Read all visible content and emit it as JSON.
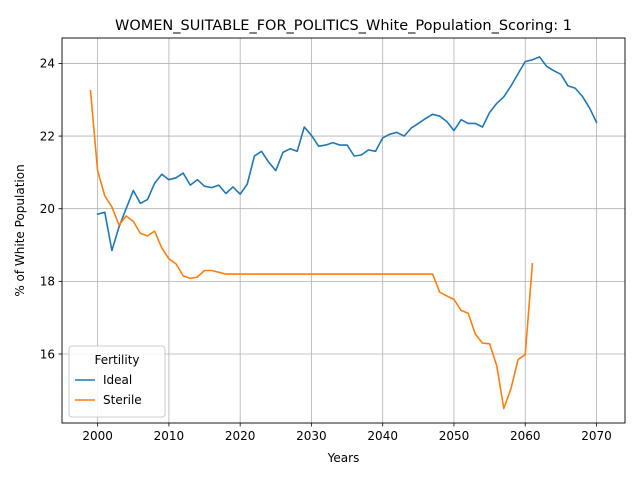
{
  "chart_data": {
    "type": "line",
    "title": "WOMEN_SUITABLE_FOR_POLITICS_White_Population_Scoring: 1",
    "xlabel": "Years",
    "ylabel": "% of White Population",
    "xlim": [
      1995,
      2074
    ],
    "ylim": [
      14.1,
      24.7
    ],
    "xticks": [
      2000,
      2010,
      2020,
      2030,
      2040,
      2050,
      2060,
      2070
    ],
    "yticks": [
      16,
      18,
      20,
      22,
      24
    ],
    "grid": true,
    "legend": {
      "title": "Fertility",
      "placement": "lower-left"
    },
    "series": [
      {
        "name": "Ideal",
        "color": "#1f77b4",
        "x": [
          2000,
          2001,
          2002,
          2003,
          2004,
          2005,
          2006,
          2007,
          2008,
          2009,
          2010,
          2011,
          2012,
          2013,
          2014,
          2015,
          2016,
          2017,
          2018,
          2019,
          2020,
          2021,
          2022,
          2023,
          2024,
          2025,
          2026,
          2027,
          2028,
          2029,
          2030,
          2031,
          2032,
          2033,
          2034,
          2035,
          2036,
          2037,
          2038,
          2039,
          2040,
          2041,
          2042,
          2043,
          2044,
          2045,
          2046,
          2047,
          2048,
          2049,
          2050,
          2051,
          2052,
          2053,
          2054,
          2055,
          2056,
          2057,
          2058,
          2059,
          2060,
          2061,
          2062,
          2063,
          2064,
          2065,
          2066,
          2067,
          2068,
          2069,
          2070
        ],
        "y": [
          19.85,
          19.9,
          18.85,
          19.5,
          20.0,
          20.5,
          20.15,
          20.25,
          20.7,
          20.95,
          20.8,
          20.85,
          20.98,
          20.65,
          20.8,
          20.62,
          20.58,
          20.65,
          20.42,
          20.6,
          20.4,
          20.68,
          21.45,
          21.58,
          21.28,
          21.05,
          21.55,
          21.65,
          21.58,
          22.25,
          22.02,
          21.72,
          21.75,
          21.82,
          21.75,
          21.75,
          21.45,
          21.48,
          21.62,
          21.58,
          21.95,
          22.05,
          22.1,
          22.0,
          22.22,
          22.35,
          22.48,
          22.6,
          22.55,
          22.4,
          22.15,
          22.45,
          22.35,
          22.35,
          22.25,
          22.65,
          22.9,
          23.08,
          23.38,
          23.72,
          24.05,
          24.1,
          24.18,
          23.92,
          23.8,
          23.7,
          23.38,
          23.32,
          23.1,
          22.78,
          22.38
        ]
      },
      {
        "name": "Sterile",
        "color": "#ff7f0e",
        "x": [
          1999,
          2000,
          2001,
          2002,
          2003,
          2004,
          2005,
          2006,
          2007,
          2008,
          2009,
          2010,
          2011,
          2012,
          2013,
          2014,
          2015,
          2016,
          2017,
          2018,
          2019,
          2020,
          2021,
          2022,
          2023,
          2024,
          2025,
          2026,
          2027,
          2028,
          2029,
          2030,
          2031,
          2032,
          2033,
          2034,
          2035,
          2036,
          2037,
          2038,
          2039,
          2040,
          2041,
          2042,
          2043,
          2044,
          2045,
          2046,
          2047,
          2048,
          2049,
          2050,
          2051,
          2052,
          2053,
          2054,
          2055,
          2056,
          2057,
          2058,
          2059,
          2060,
          2061
        ],
        "y": [
          23.25,
          21.05,
          20.35,
          20.05,
          19.55,
          19.8,
          19.65,
          19.32,
          19.25,
          19.38,
          18.92,
          18.62,
          18.48,
          18.15,
          18.08,
          18.12,
          18.3,
          18.3,
          18.25,
          18.2,
          18.2,
          18.2,
          18.2,
          18.2,
          18.2,
          18.2,
          18.2,
          18.2,
          18.2,
          18.2,
          18.2,
          18.2,
          18.2,
          18.2,
          18.2,
          18.2,
          18.2,
          18.2,
          18.2,
          18.2,
          18.2,
          18.2,
          18.2,
          18.2,
          18.2,
          18.2,
          18.2,
          18.2,
          18.2,
          17.7,
          17.6,
          17.5,
          17.2,
          17.12,
          16.55,
          16.3,
          16.28,
          15.68,
          14.5,
          15.05,
          15.85,
          15.98,
          18.48
        ]
      }
    ]
  }
}
